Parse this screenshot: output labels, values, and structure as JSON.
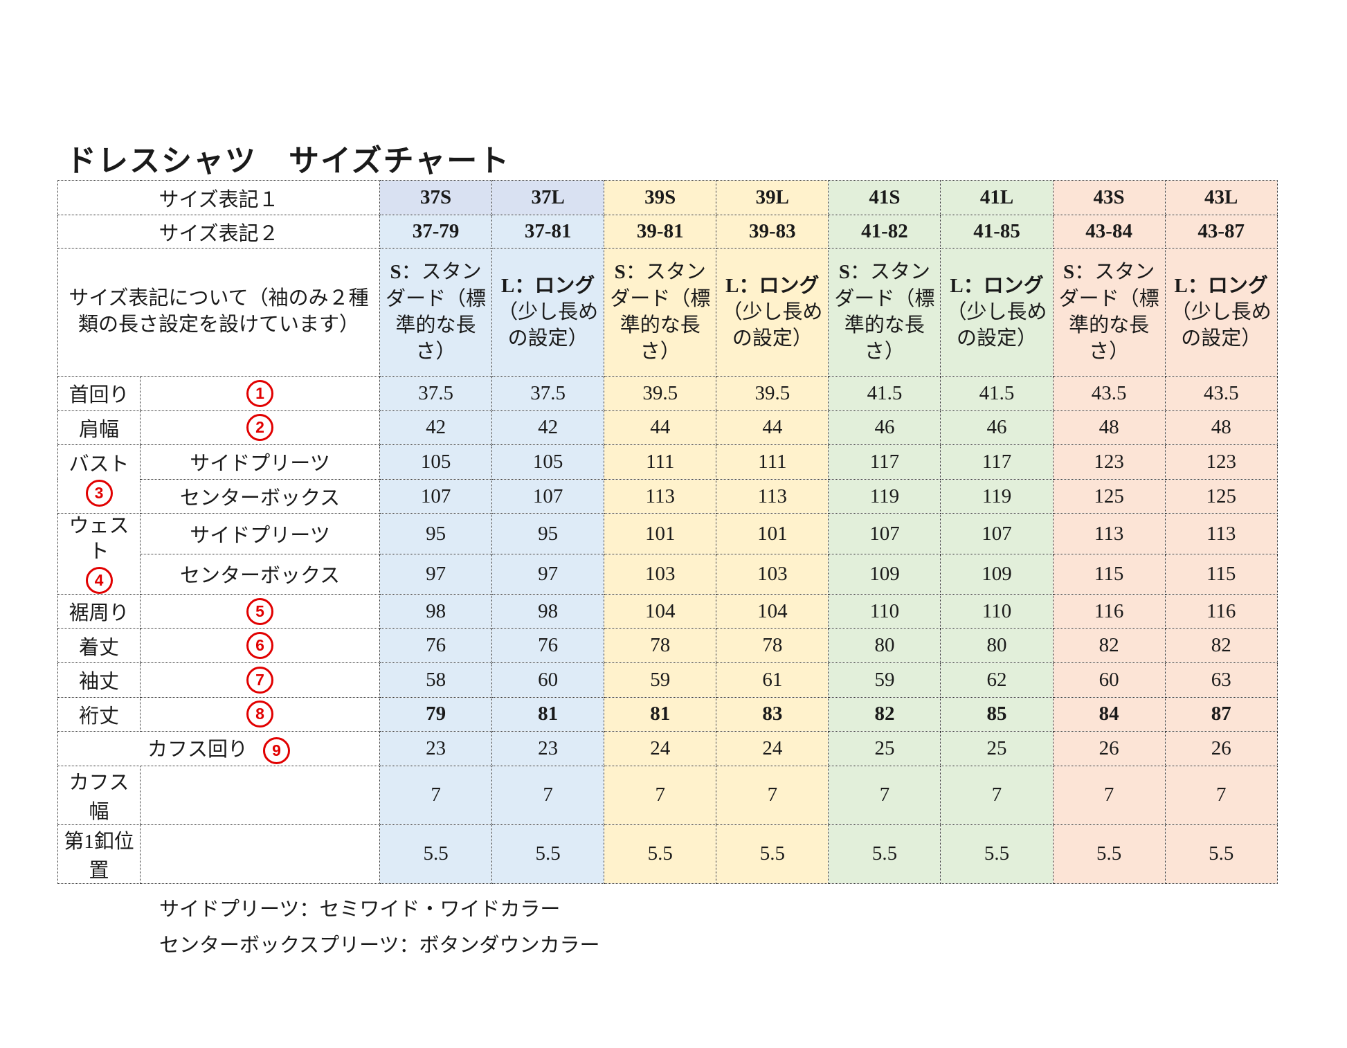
{
  "title": "ドレスシャツ　サイズチャート",
  "colors": {
    "blueHdr": "#D9E1F2",
    "blue": "#DEEBF7",
    "yellow": "#FFF2CC",
    "green": "#E2EFDA",
    "pink": "#FCE4D6",
    "red": "#E10000"
  },
  "table": {
    "header1_label": "サイズ表記１",
    "header2_label": "サイズ表記２",
    "header3_label": "サイズ表記について（袖のみ２種類の長さ設定を設けています）",
    "columns": [
      {
        "label1": "37S",
        "label2": "37-79",
        "desc_bold": "S",
        "desc_rest": "：スタンダード（標準的な長さ）",
        "group": "blue"
      },
      {
        "label1": "37L",
        "label2": "37-81",
        "desc_bold": "L：ロング",
        "desc_rest": "（少し長めの設定）",
        "group": "blue"
      },
      {
        "label1": "39S",
        "label2": "39-81",
        "desc_bold": "S",
        "desc_rest": "：スタンダード（標準的な長さ）",
        "group": "yellow"
      },
      {
        "label1": "39L",
        "label2": "39-83",
        "desc_bold": "L：ロング",
        "desc_rest": "（少し長めの設定）",
        "group": "yellow"
      },
      {
        "label1": "41S",
        "label2": "41-82",
        "desc_bold": "S",
        "desc_rest": "：スタンダード（標準的な長さ）",
        "group": "green"
      },
      {
        "label1": "41L",
        "label2": "41-85",
        "desc_bold": "L：ロング",
        "desc_rest": "（少し長めの設定）",
        "group": "green"
      },
      {
        "label1": "43S",
        "label2": "43-84",
        "desc_bold": "S",
        "desc_rest": "：スタンダード（標準的な長さ）",
        "group": "pink"
      },
      {
        "label1": "43L",
        "label2": "43-87",
        "desc_bold": "L：ロング",
        "desc_rest": "（少し長めの設定）",
        "group": "pink"
      }
    ],
    "rows": [
      {
        "label": "首回り",
        "marker": "1",
        "values": [
          "37.5",
          "37.5",
          "39.5",
          "39.5",
          "41.5",
          "41.5",
          "43.5",
          "43.5"
        ]
      },
      {
        "label": "肩幅",
        "marker": "2",
        "values": [
          "42",
          "42",
          "44",
          "44",
          "46",
          "46",
          "48",
          "48"
        ]
      },
      {
        "label": "バスト",
        "marker": "3",
        "subrows": [
          {
            "sub": "サイドプリーツ",
            "values": [
              "105",
              "105",
              "111",
              "111",
              "117",
              "117",
              "123",
              "123"
            ]
          },
          {
            "sub": "センターボックス",
            "values": [
              "107",
              "107",
              "113",
              "113",
              "119",
              "119",
              "125",
              "125"
            ]
          }
        ]
      },
      {
        "label": "ウェスト",
        "marker": "4",
        "subrows": [
          {
            "sub": "サイドプリーツ",
            "values": [
              "95",
              "95",
              "101",
              "101",
              "107",
              "107",
              "113",
              "113"
            ]
          },
          {
            "sub": "センターボックス",
            "values": [
              "97",
              "97",
              "103",
              "103",
              "109",
              "109",
              "115",
              "115"
            ]
          }
        ]
      },
      {
        "label": "裾周り",
        "marker": "5",
        "values": [
          "98",
          "98",
          "104",
          "104",
          "110",
          "110",
          "116",
          "116"
        ]
      },
      {
        "label": "着丈",
        "marker": "6",
        "values": [
          "76",
          "76",
          "78",
          "78",
          "80",
          "80",
          "82",
          "82"
        ]
      },
      {
        "label": "袖丈",
        "marker": "7",
        "values": [
          "58",
          "60",
          "59",
          "61",
          "59",
          "62",
          "60",
          "63"
        ]
      },
      {
        "label": "裄丈",
        "marker": "8",
        "bold": true,
        "values": [
          "79",
          "81",
          "81",
          "83",
          "82",
          "85",
          "84",
          "87"
        ]
      },
      {
        "label": "カフス回り",
        "marker": "9",
        "merged": true,
        "values": [
          "23",
          "23",
          "24",
          "24",
          "25",
          "25",
          "26",
          "26"
        ]
      },
      {
        "label": "カフス幅",
        "marker": "",
        "values": [
          "7",
          "7",
          "7",
          "7",
          "7",
          "7",
          "7",
          "7"
        ]
      },
      {
        "label": "第1釦位置",
        "marker": "",
        "values": [
          "5.5",
          "5.5",
          "5.5",
          "5.5",
          "5.5",
          "5.5",
          "5.5",
          "5.5"
        ]
      }
    ]
  },
  "footnotes": [
    "サイドプリーツ：セミワイド・ワイドカラー",
    "センターボックスプリーツ：ボタンダウンカラー"
  ]
}
